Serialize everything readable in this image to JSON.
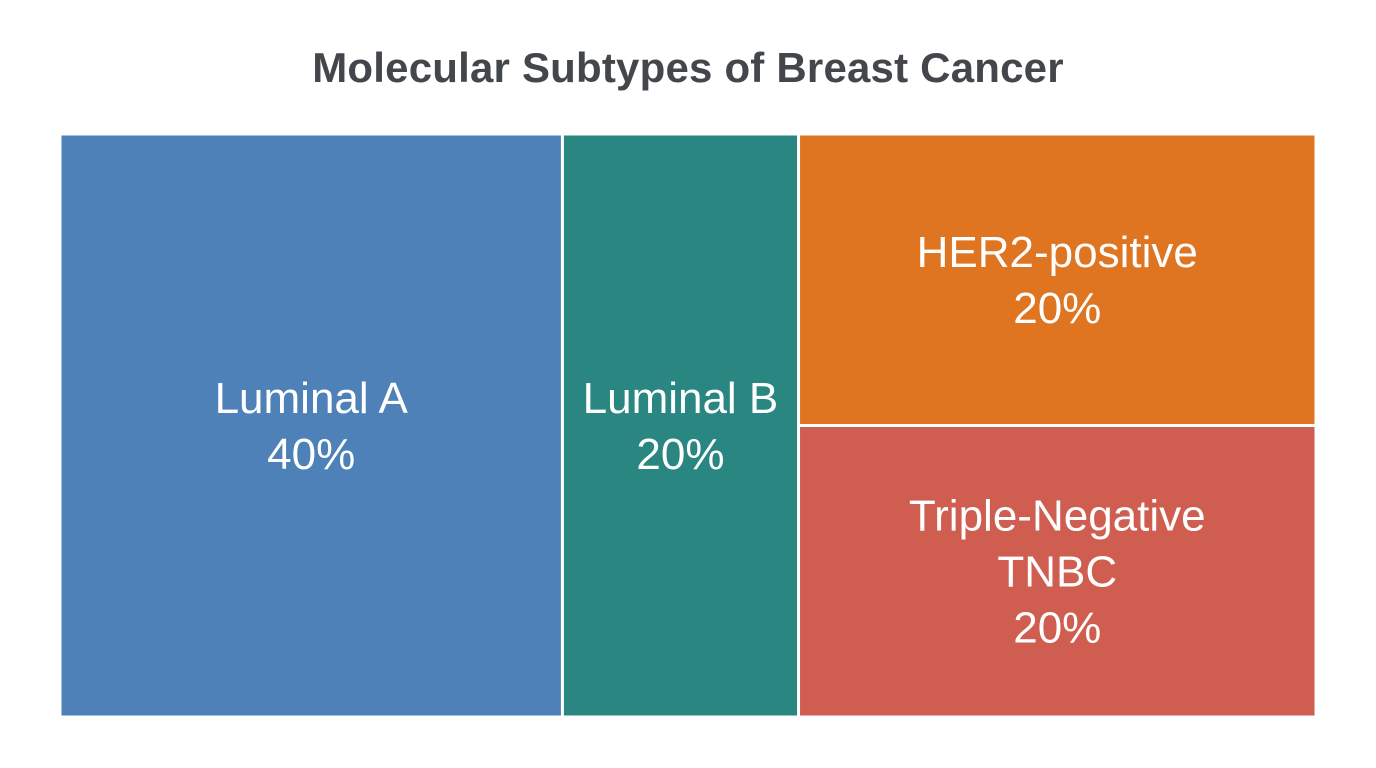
{
  "chart_data": {
    "type": "treemap",
    "title": "Molecular Subtypes of Breast Cancer",
    "total": 100,
    "items": [
      {
        "name": "Luminal A",
        "value": 40,
        "label_lines": [
          "Luminal A",
          "40%"
        ],
        "color": "#4e81b8"
      },
      {
        "name": "Luminal B",
        "value": 20,
        "label_lines": [
          "Luminal B",
          "20%"
        ],
        "color": "#2a8680"
      },
      {
        "name": "HER2-positive",
        "value": 20,
        "label_lines": [
          "HER2-positive",
          "20%"
        ],
        "color": "#df7421"
      },
      {
        "name": "Triple-Negative TNBC",
        "value": 20,
        "label_lines": [
          "Triple-Negative",
          "TNBC",
          "20%"
        ],
        "color": "#cf5d50"
      }
    ],
    "legend": "none",
    "grid": false
  }
}
